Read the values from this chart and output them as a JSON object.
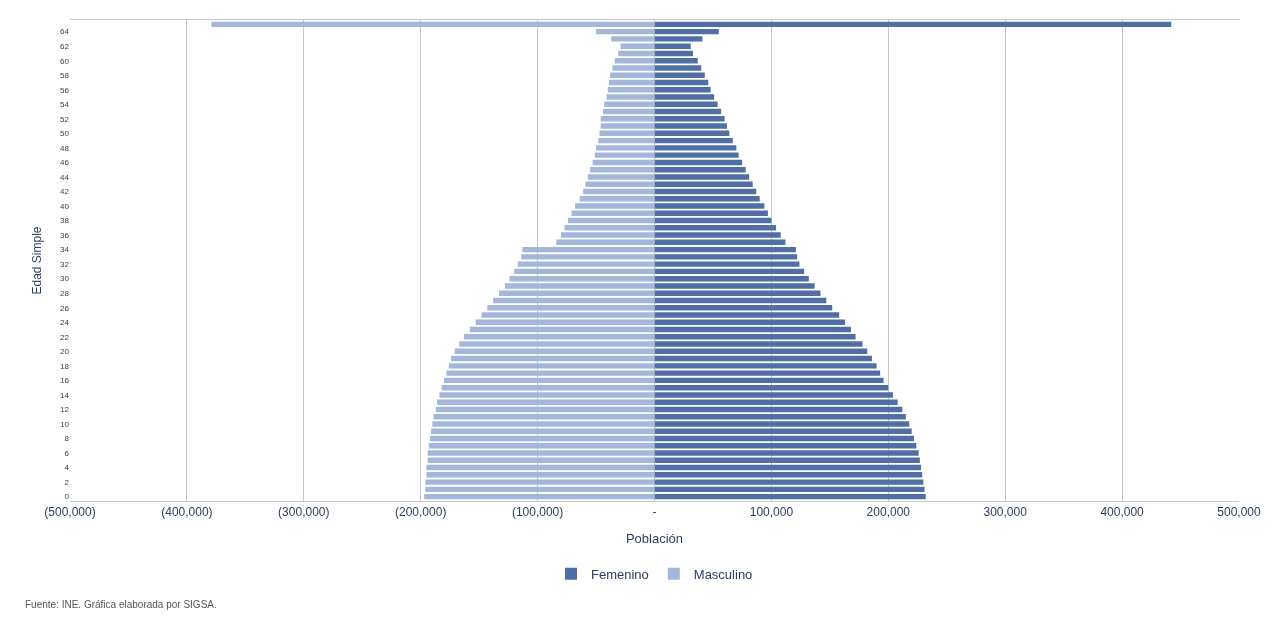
{
  "chart_data": {
    "type": "bar",
    "orientation": "horizontal",
    "stacked": true,
    "xlabel": "Población",
    "ylabel": "Edad Simple",
    "categories": [
      null,
      "64",
      null,
      "62",
      null,
      "60",
      null,
      "58",
      null,
      "56",
      null,
      "54",
      null,
      "52",
      null,
      "50",
      null,
      "48",
      null,
      "46",
      null,
      "44",
      null,
      "42",
      null,
      "40",
      null,
      "38",
      null,
      "36",
      null,
      "34",
      null,
      "32",
      null,
      "30",
      null,
      "28",
      null,
      "26",
      null,
      "24",
      null,
      "22",
      null,
      "20",
      null,
      "18",
      null,
      "16",
      null,
      "14",
      null,
      "12",
      null,
      "10",
      null,
      "8",
      null,
      "6",
      null,
      "4",
      null,
      "2",
      null,
      "0"
    ],
    "series": [
      {
        "name": "Femenino",
        "color": "#4f6fa5",
        "values": [
          442000,
          55000,
          41000,
          31000,
          33000,
          37000,
          40000,
          43000,
          46000,
          48000,
          51000,
          54000,
          57000,
          60000,
          62000,
          64000,
          67000,
          70000,
          72000,
          75000,
          78000,
          81000,
          84000,
          87000,
          90000,
          94000,
          97000,
          100000,
          104000,
          108000,
          112000,
          121000,
          122000,
          124000,
          128000,
          132000,
          137000,
          142000,
          147000,
          152000,
          158000,
          163000,
          168000,
          172000,
          178000,
          182000,
          186000,
          190000,
          193000,
          196000,
          200000,
          204000,
          208000,
          212000,
          215000,
          218000,
          220000,
          222000,
          224000,
          226000,
          227000,
          228000,
          229000,
          230000,
          231000,
          232000
        ]
      },
      {
        "name": "Masculino",
        "color": "#a3b6dc",
        "values": [
          -379000,
          -50000,
          -37000,
          -29000,
          -31000,
          -34000,
          -36000,
          -38000,
          -39000,
          -40000,
          -41000,
          -43000,
          -44000,
          -46000,
          -46000,
          -47000,
          -48000,
          -50000,
          -51000,
          -53000,
          -55000,
          -57000,
          -59000,
          -61000,
          -64000,
          -68000,
          -71000,
          -74000,
          -77000,
          -80000,
          -84000,
          -113000,
          -114000,
          -117000,
          -120000,
          -124000,
          -128000,
          -133000,
          -138000,
          -143000,
          -148000,
          -153000,
          -158000,
          -163000,
          -167000,
          -171000,
          -174000,
          -176000,
          -178000,
          -180000,
          -182000,
          -184000,
          -186000,
          -187000,
          -189000,
          -190000,
          -191000,
          -192000,
          -193000,
          -194000,
          -194000,
          -195000,
          -195000,
          -196000,
          -196000,
          -197000
        ]
      }
    ],
    "xlim": [
      -500000,
      500000
    ],
    "xticks": [
      {
        "value": -500000,
        "label": "(500,000)"
      },
      {
        "value": -400000,
        "label": "(400,000)"
      },
      {
        "value": -300000,
        "label": "(300,000)"
      },
      {
        "value": -200000,
        "label": "(200,000)"
      },
      {
        "value": -100000,
        "label": "(100,000)"
      },
      {
        "value": 0,
        "label": "-"
      },
      {
        "value": 100000,
        "label": "100,000"
      },
      {
        "value": 200000,
        "label": "200,000"
      },
      {
        "value": 300000,
        "label": "300,000"
      },
      {
        "value": 400000,
        "label": "400,000"
      },
      {
        "value": 500000,
        "label": "500,000"
      }
    ],
    "grid": "x",
    "legend": "bottom",
    "annotations": [
      "Fuente: INE. Gráfica elaborada por SIGSA."
    ]
  }
}
